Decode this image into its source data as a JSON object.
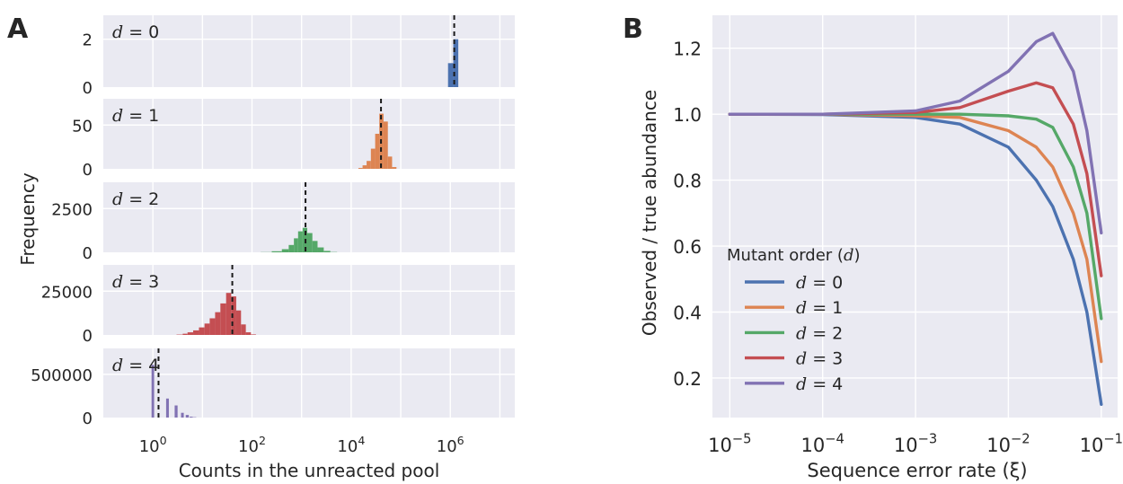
{
  "panel_a": {
    "letter": "A",
    "xlabel": "Counts in the unreacted pool",
    "ylabel": "Frequency",
    "xticks": [
      "10^0",
      "10^2",
      "10^4",
      "10^6"
    ]
  },
  "panel_b": {
    "letter": "B",
    "xlabel": "Sequence error rate (ξ)",
    "ylabel": "Observed / true abundance",
    "legend_title": "Mutant order (d)",
    "xticks": [
      "10^-5",
      "10^-4",
      "10^-3",
      "10^-2",
      "10^-1"
    ],
    "yticks": [
      "0.2",
      "0.4",
      "0.6",
      "0.8",
      "1.0",
      "1.2"
    ]
  },
  "colors": {
    "d0": "#4c72b0",
    "d1": "#dd8452",
    "d2": "#55a868",
    "d3": "#c44e52",
    "d4": "#8172b3",
    "background": "#eaeaf2",
    "grid": "#ffffff",
    "text": "#262626"
  },
  "chart_data": [
    {
      "type": "bar",
      "title": "",
      "xlabel": "Counts in the unreacted pool",
      "ylabel": "Frequency",
      "xscale": "log",
      "xlim": [
        0.1,
        20000000
      ],
      "subplots": [
        {
          "label": "d = 0",
          "color": "#4c72b0",
          "yticks": [
            "0",
            "2"
          ],
          "ylim": [
            0,
            3
          ],
          "median": 1200000,
          "bins": [
            {
              "x": 900000,
              "x2": 1150000,
              "value": 1
            },
            {
              "x": 1150000,
              "x2": 1450000,
              "value": 2
            }
          ]
        },
        {
          "label": "d = 1",
          "color": "#dd8452",
          "yticks": [
            "0",
            "50"
          ],
          "ylim": [
            0,
            80
          ],
          "median": 40000,
          "bins": [
            {
              "x": 14000,
              "x2": 17000,
              "value": 1
            },
            {
              "x": 17000,
              "x2": 20500,
              "value": 4
            },
            {
              "x": 20500,
              "x2": 25000,
              "value": 9
            },
            {
              "x": 25000,
              "x2": 30500,
              "value": 23
            },
            {
              "x": 30500,
              "x2": 37000,
              "value": 40
            },
            {
              "x": 37000,
              "x2": 45000,
              "value": 63
            },
            {
              "x": 45000,
              "x2": 55000,
              "value": 54
            },
            {
              "x": 55000,
              "x2": 67000,
              "value": 14
            },
            {
              "x": 67000,
              "x2": 82000,
              "value": 2
            }
          ]
        },
        {
          "label": "d = 2",
          "color": "#55a868",
          "yticks": [
            "0",
            "2500"
          ],
          "ylim": [
            0,
            4000
          ],
          "median": 1200,
          "bins": [
            {
              "x": 150,
              "x2": 250,
              "value": 10
            },
            {
              "x": 250,
              "x2": 400,
              "value": 60
            },
            {
              "x": 400,
              "x2": 550,
              "value": 180
            },
            {
              "x": 550,
              "x2": 700,
              "value": 420
            },
            {
              "x": 700,
              "x2": 850,
              "value": 800
            },
            {
              "x": 850,
              "x2": 1050,
              "value": 1200
            },
            {
              "x": 1050,
              "x2": 1300,
              "value": 1400
            },
            {
              "x": 1300,
              "x2": 1650,
              "value": 1100
            },
            {
              "x": 1650,
              "x2": 2100,
              "value": 650
            },
            {
              "x": 2100,
              "x2": 2800,
              "value": 280
            },
            {
              "x": 2800,
              "x2": 3800,
              "value": 80
            },
            {
              "x": 3800,
              "x2": 5200,
              "value": 15
            }
          ]
        },
        {
          "label": "d = 3",
          "color": "#c44e52",
          "yticks": [
            "0",
            "25000"
          ],
          "ylim": [
            0,
            40000
          ],
          "median": 40,
          "bins": [
            {
              "x": 3,
              "x2": 4,
              "value": 200
            },
            {
              "x": 4,
              "x2": 5,
              "value": 700
            },
            {
              "x": 5,
              "x2": 6.5,
              "value": 1500
            },
            {
              "x": 6.5,
              "x2": 8.5,
              "value": 2600
            },
            {
              "x": 8.5,
              "x2": 11,
              "value": 4300
            },
            {
              "x": 11,
              "x2": 14,
              "value": 6500
            },
            {
              "x": 14,
              "x2": 18,
              "value": 9500
            },
            {
              "x": 18,
              "x2": 23,
              "value": 13000
            },
            {
              "x": 23,
              "x2": 30,
              "value": 18000
            },
            {
              "x": 30,
              "x2": 38,
              "value": 24000
            },
            {
              "x": 38,
              "x2": 48,
              "value": 22000
            },
            {
              "x": 48,
              "x2": 60,
              "value": 14000
            },
            {
              "x": 60,
              "x2": 75,
              "value": 6000
            },
            {
              "x": 75,
              "x2": 95,
              "value": 1500
            },
            {
              "x": 95,
              "x2": 120,
              "value": 300
            }
          ]
        },
        {
          "label": "d = 4",
          "color": "#8172b3",
          "yticks": [
            "0",
            "500000"
          ],
          "ylim": [
            0,
            800000
          ],
          "median": 1.3,
          "bins": [
            {
              "x": 0.94,
              "x2": 1.06,
              "value": 610000
            },
            {
              "x": 1.85,
              "x2": 2.1,
              "value": 220000
            },
            {
              "x": 2.75,
              "x2": 3.15,
              "value": 140000
            },
            {
              "x": 3.7,
              "x2": 4.2,
              "value": 55000
            },
            {
              "x": 4.6,
              "x2": 5.3,
              "value": 30000
            },
            {
              "x": 5.5,
              "x2": 6.4,
              "value": 10000
            },
            {
              "x": 6.5,
              "x2": 7.5,
              "value": 4000
            }
          ]
        }
      ]
    },
    {
      "type": "line",
      "title": "",
      "xlabel": "Sequence error rate (ξ)",
      "ylabel": "Observed / true abundance",
      "xscale": "log",
      "xlim": [
        6.5e-06,
        0.15
      ],
      "ylim": [
        0.08,
        1.3
      ],
      "x": [
        1e-05,
        0.0001,
        0.001,
        0.003,
        0.01,
        0.02,
        0.03,
        0.05,
        0.07,
        0.1
      ],
      "series": [
        {
          "name": "d = 0",
          "color": "#4c72b0",
          "values": [
            1.0,
            0.999,
            0.99,
            0.97,
            0.9,
            0.8,
            0.72,
            0.56,
            0.4,
            0.12
          ]
        },
        {
          "name": "d = 1",
          "color": "#dd8452",
          "values": [
            1.0,
            1.0,
            0.995,
            0.99,
            0.95,
            0.9,
            0.84,
            0.7,
            0.56,
            0.25
          ]
        },
        {
          "name": "d = 2",
          "color": "#55a868",
          "values": [
            1.0,
            1.0,
            1.0,
            1.0,
            0.995,
            0.985,
            0.96,
            0.84,
            0.7,
            0.38
          ]
        },
        {
          "name": "d = 3",
          "color": "#c44e52",
          "values": [
            1.0,
            1.0,
            1.005,
            1.02,
            1.07,
            1.095,
            1.08,
            0.97,
            0.82,
            0.51
          ]
        },
        {
          "name": "d = 4",
          "color": "#8172b3",
          "values": [
            1.0,
            1.0,
            1.01,
            1.04,
            1.13,
            1.22,
            1.245,
            1.13,
            0.95,
            0.64
          ]
        }
      ]
    }
  ]
}
